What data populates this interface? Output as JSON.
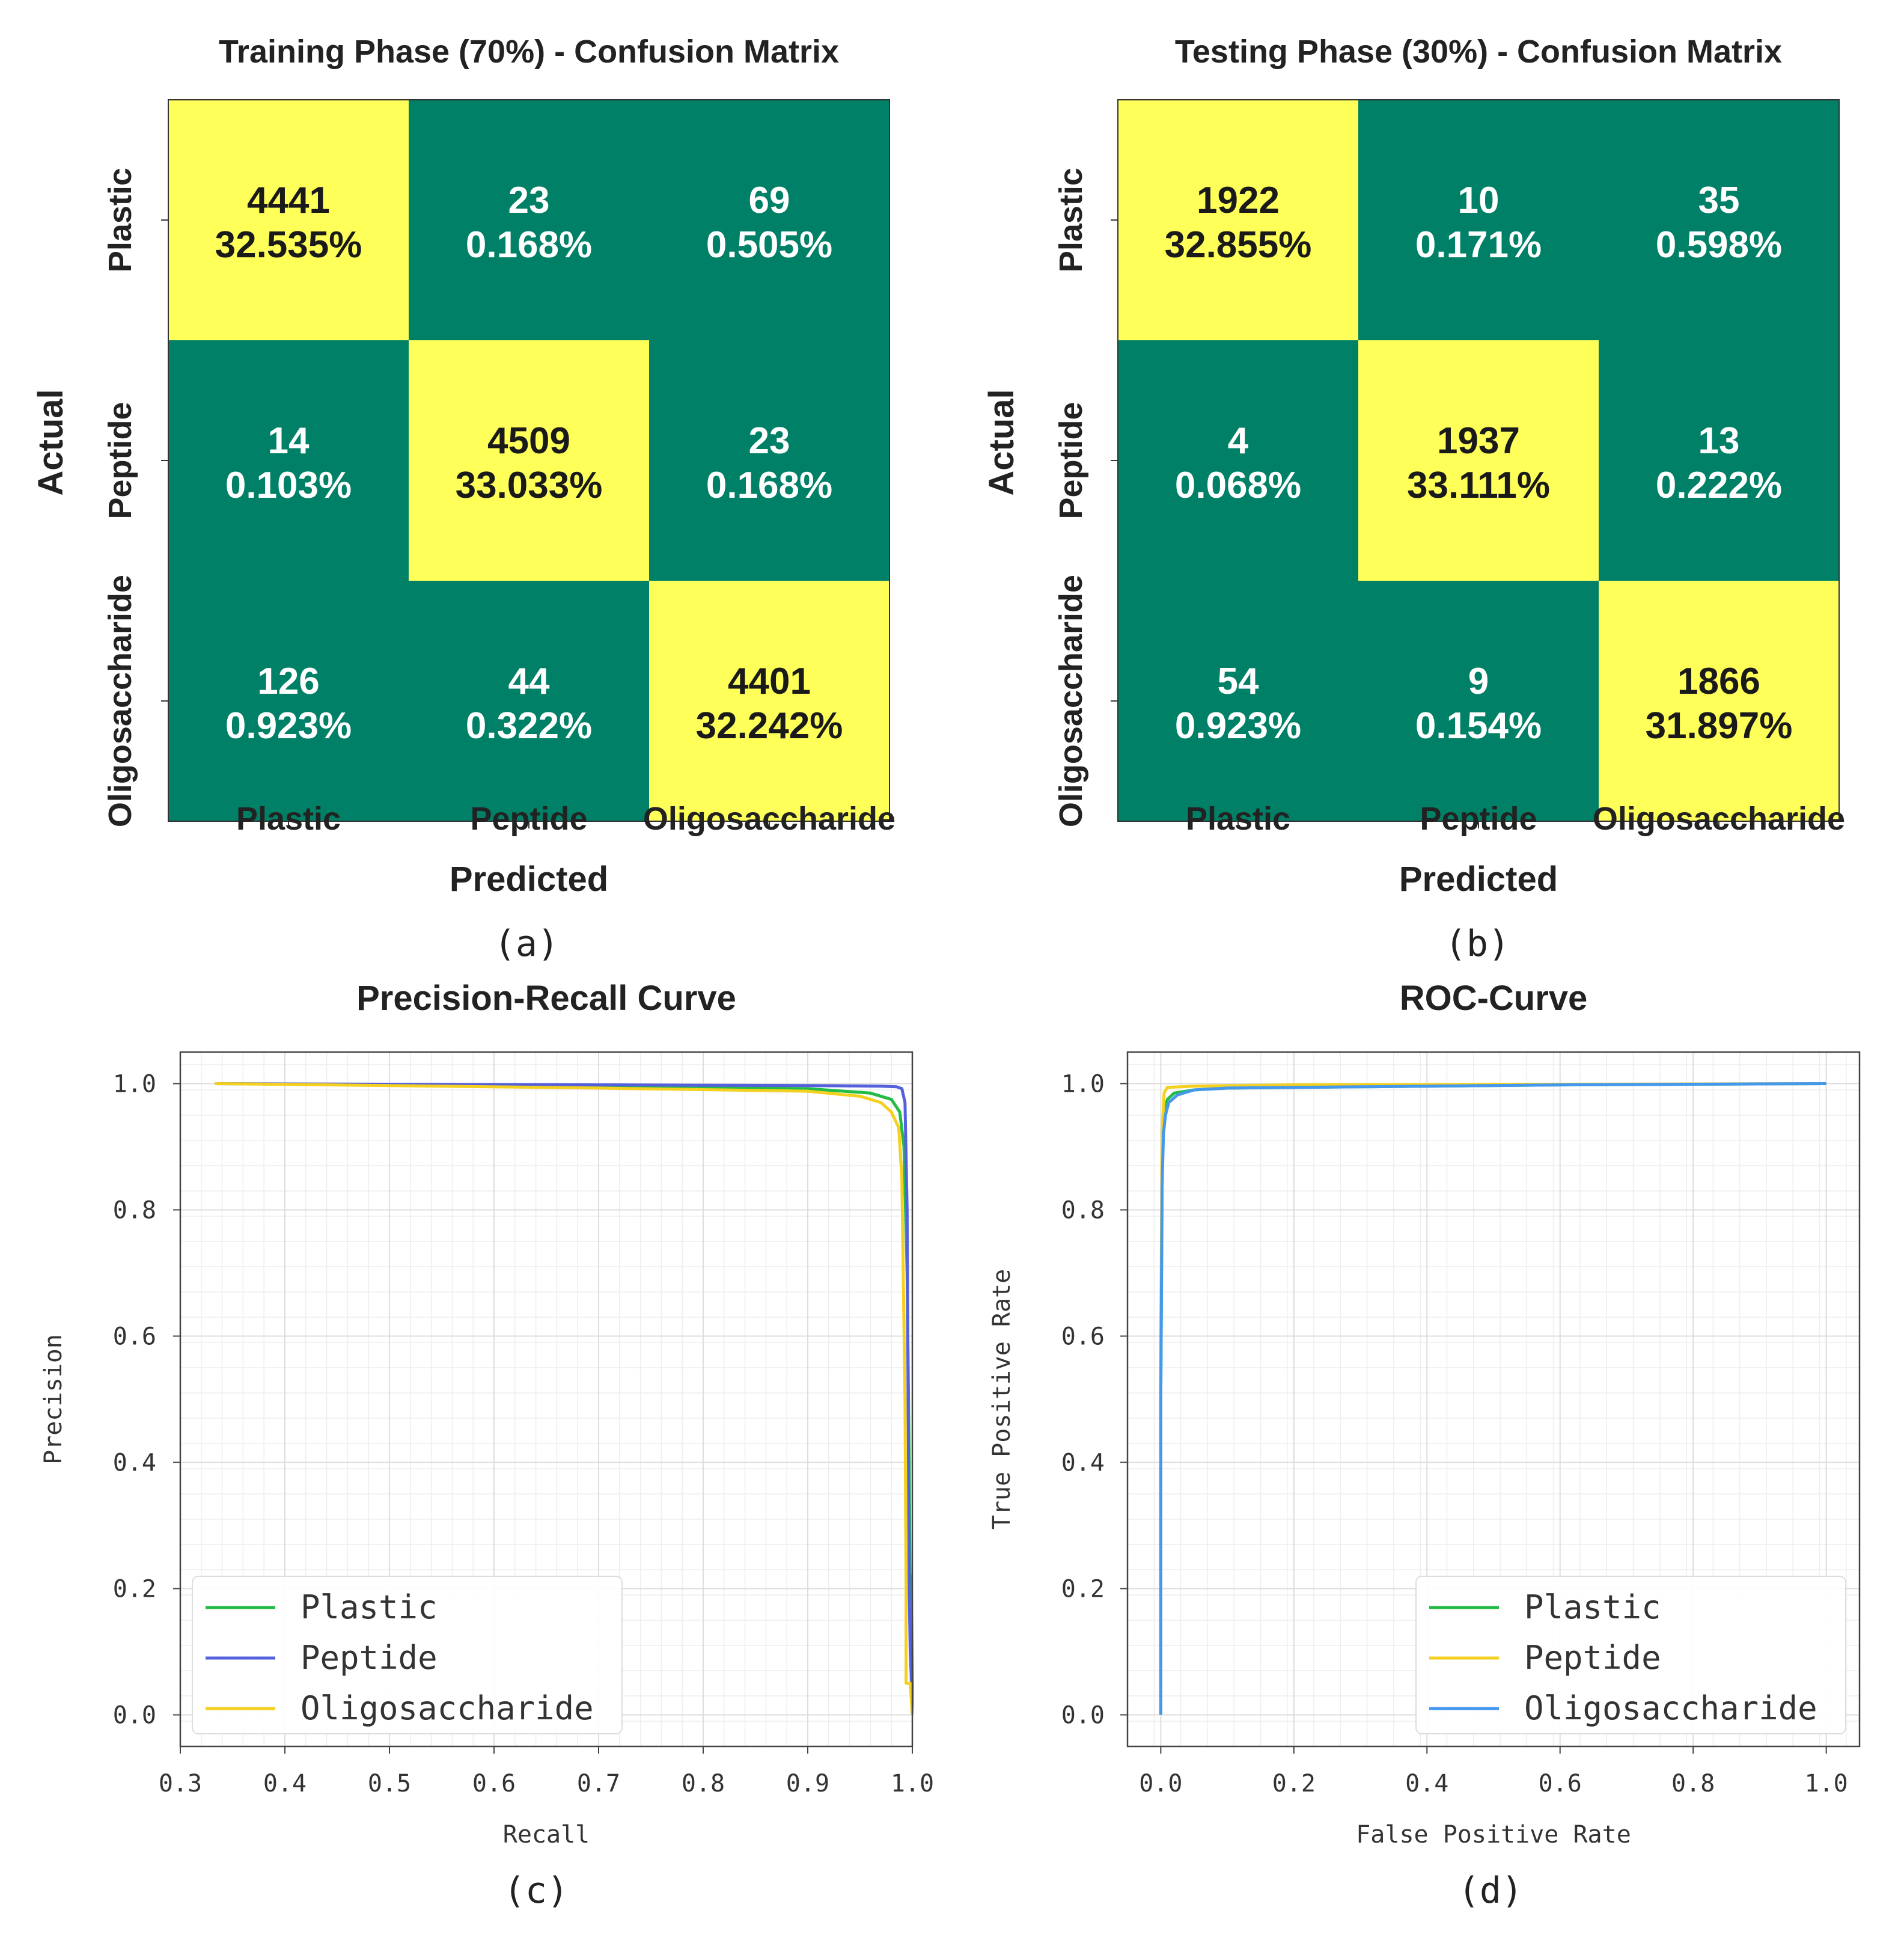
{
  "chart_data": [
    {
      "type": "heatmap",
      "panel_label": "(a)",
      "title": "Training Phase (70%) - Confusion Matrix",
      "xlabel": "Predicted",
      "ylabel": "Actual",
      "x_categories": [
        "Plastic",
        "Peptide",
        "Oligosaccharide"
      ],
      "y_categories": [
        "Plastic",
        "Peptide",
        "Oligosaccharide"
      ],
      "counts": [
        [
          4441,
          23,
          69
        ],
        [
          14,
          4509,
          23
        ],
        [
          126,
          44,
          4401
        ]
      ],
      "percents": [
        [
          "32.535%",
          "0.168%",
          "0.505%"
        ],
        [
          "0.103%",
          "33.033%",
          "0.168%"
        ],
        [
          "0.923%",
          "0.322%",
          "32.242%"
        ]
      ],
      "colors": {
        "high": "#ffff5a",
        "low": "#008066"
      }
    },
    {
      "type": "heatmap",
      "panel_label": "(b)",
      "title": "Testing Phase (30%) - Confusion Matrix",
      "xlabel": "Predicted",
      "ylabel": "Actual",
      "x_categories": [
        "Plastic",
        "Peptide",
        "Oligosaccharide"
      ],
      "y_categories": [
        "Plastic",
        "Peptide",
        "Oligosaccharide"
      ],
      "counts": [
        [
          1922,
          10,
          35
        ],
        [
          4,
          1937,
          13
        ],
        [
          54,
          9,
          1866
        ]
      ],
      "percents": [
        [
          "32.855%",
          "0.171%",
          "0.598%"
        ],
        [
          "0.068%",
          "33.111%",
          "0.222%"
        ],
        [
          "0.923%",
          "0.154%",
          "31.897%"
        ]
      ],
      "colors": {
        "high": "#ffff5a",
        "low": "#008066"
      }
    },
    {
      "type": "line",
      "panel_label": "(c)",
      "title": "Precision-Recall Curve",
      "xlabel": "Recall",
      "ylabel": "Precision",
      "xlim": [
        0.3,
        1.0
      ],
      "ylim": [
        -0.05,
        1.05
      ],
      "xticks": [
        0.3,
        0.4,
        0.5,
        0.6,
        0.7,
        0.8,
        0.9,
        1.0
      ],
      "xtick_labels": [
        "0.3",
        "0.4",
        "0.5",
        "0.6",
        "0.7",
        "0.8",
        "0.9",
        "1.0"
      ],
      "yticks": [
        0.0,
        0.2,
        0.4,
        0.6,
        0.8,
        1.0
      ],
      "ytick_labels": [
        "0.0",
        "0.2",
        "0.4",
        "0.6",
        "0.8",
        "1.0"
      ],
      "grid": true,
      "legend_position": "lower-left",
      "series": [
        {
          "name": "Plastic",
          "color": "#22bb44",
          "x": [
            0.333,
            0.5,
            0.7,
            0.9,
            0.96,
            0.98,
            0.988,
            0.992,
            0.995,
            0.997,
            0.998,
            0.999,
            0.999,
            1.0,
            1.0
          ],
          "y": [
            1.0,
            0.998,
            0.995,
            0.992,
            0.985,
            0.975,
            0.955,
            0.9,
            0.7,
            0.4,
            0.15,
            0.05,
            0.22,
            0.05,
            0.0
          ]
        },
        {
          "name": "Peptide",
          "color": "#5560dd",
          "x": [
            0.333,
            0.5,
            0.7,
            0.9,
            0.97,
            0.985,
            0.99,
            0.993,
            0.995,
            0.996,
            0.997,
            0.998,
            0.999,
            1.0
          ],
          "y": [
            1.0,
            0.999,
            0.998,
            0.997,
            0.996,
            0.995,
            0.992,
            0.97,
            0.8,
            0.5,
            0.2,
            0.1,
            0.06,
            0.04
          ]
        },
        {
          "name": "Oligosaccharide",
          "color": "#f4d020",
          "x": [
            0.333,
            0.5,
            0.7,
            0.9,
            0.95,
            0.97,
            0.98,
            0.987,
            0.99,
            0.993,
            0.994,
            0.994,
            0.998,
            1.0
          ],
          "y": [
            1.0,
            0.997,
            0.993,
            0.988,
            0.98,
            0.97,
            0.955,
            0.93,
            0.85,
            0.5,
            0.2,
            0.05,
            0.05,
            0.0
          ]
        }
      ]
    },
    {
      "type": "line",
      "panel_label": "(d)",
      "title": "ROC-Curve",
      "xlabel": "False Positive Rate",
      "ylabel": "True Positive Rate",
      "xlim": [
        -0.05,
        1.05
      ],
      "ylim": [
        -0.05,
        1.05
      ],
      "xticks": [
        0.0,
        0.2,
        0.4,
        0.6,
        0.8,
        1.0
      ],
      "xtick_labels": [
        "0.0",
        "0.2",
        "0.4",
        "0.6",
        "0.8",
        "1.0"
      ],
      "yticks": [
        0.0,
        0.2,
        0.4,
        0.6,
        0.8,
        1.0
      ],
      "ytick_labels": [
        "0.0",
        "0.2",
        "0.4",
        "0.6",
        "0.8",
        "1.0"
      ],
      "grid": true,
      "legend_position": "lower-right",
      "series": [
        {
          "name": "Plastic",
          "color": "#22bb44",
          "x": [
            0.0,
            0.0,
            0.002,
            0.004,
            0.006,
            0.01,
            0.02,
            0.05,
            0.1,
            0.3,
            0.6,
            1.0
          ],
          "y": [
            0.0,
            0.5,
            0.85,
            0.93,
            0.96,
            0.975,
            0.985,
            0.99,
            0.993,
            0.995,
            0.998,
            1.0
          ]
        },
        {
          "name": "Peptide",
          "color": "#f4d020",
          "x": [
            0.0,
            0.0,
            0.002,
            0.005,
            0.01,
            0.05,
            0.2,
            1.0
          ],
          "y": [
            0.0,
            0.6,
            0.92,
            0.985,
            0.994,
            0.996,
            0.998,
            1.0
          ]
        },
        {
          "name": "Oligosaccharide",
          "color": "#4499ee",
          "x": [
            0.0,
            0.0,
            0.002,
            0.004,
            0.007,
            0.012,
            0.025,
            0.05,
            0.1,
            0.3,
            0.6,
            1.0
          ],
          "y": [
            0.0,
            0.51,
            0.84,
            0.92,
            0.95,
            0.97,
            0.982,
            0.99,
            0.993,
            0.995,
            0.998,
            1.0
          ]
        }
      ]
    }
  ]
}
